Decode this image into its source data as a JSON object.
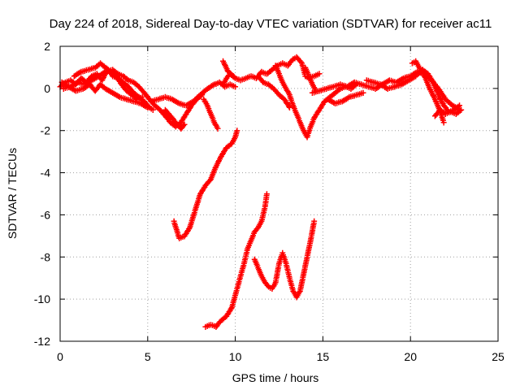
{
  "chart_data": {
    "type": "scatter",
    "title": "Day 224 of 2018, Sidereal Day-to-day VTEC variation (SDTVAR) for receiver ac11",
    "xlabel": "GPS time / hours",
    "ylabel": "SDTVAR / TECUs",
    "xlim": [
      0,
      25
    ],
    "ylim": [
      -12,
      2
    ],
    "xticks": [
      0,
      5,
      10,
      15,
      20,
      25
    ],
    "yticks": [
      -12,
      -10,
      -8,
      -6,
      -4,
      -2,
      0,
      2
    ],
    "grid": true,
    "marker": "+",
    "series": [
      {
        "name": "SDTVAR",
        "color": "#ff0000",
        "tracks": [
          [
            [
              0.0,
              0.1
            ],
            [
              0.3,
              0.3
            ],
            [
              0.6,
              0.4
            ],
            [
              0.9,
              0.2
            ],
            [
              1.2,
              0.5
            ],
            [
              1.5,
              0.3
            ],
            [
              1.8,
              0.6
            ],
            [
              2.1,
              0.7
            ],
            [
              2.4,
              0.4
            ],
            [
              2.7,
              0.9
            ],
            [
              3.0,
              0.6
            ],
            [
              3.3,
              0.5
            ],
            [
              3.6,
              0.3
            ],
            [
              3.9,
              0.1
            ],
            [
              4.2,
              -0.2
            ],
            [
              4.5,
              -0.4
            ],
            [
              4.8,
              -0.6
            ],
            [
              5.1,
              -0.9
            ],
            [
              5.3,
              -1.0
            ]
          ],
          [
            [
              0.1,
              0.3
            ],
            [
              0.5,
              0.1
            ],
            [
              0.9,
              -0.1
            ],
            [
              1.3,
              0.0
            ],
            [
              1.7,
              0.2
            ],
            [
              2.0,
              -0.1
            ],
            [
              2.3,
              0.2
            ],
            [
              2.6,
              0.0
            ],
            [
              3.0,
              -0.2
            ],
            [
              3.4,
              -0.4
            ],
            [
              3.8,
              -0.5
            ],
            [
              4.2,
              -0.6
            ],
            [
              4.6,
              -0.7
            ],
            [
              5.0,
              -0.9
            ]
          ],
          [
            [
              0.8,
              0.6
            ],
            [
              1.2,
              0.8
            ],
            [
              1.6,
              0.9
            ],
            [
              2.0,
              1.0
            ],
            [
              2.3,
              1.2
            ],
            [
              2.6,
              1.0
            ],
            [
              2.9,
              0.8
            ],
            [
              3.2,
              0.6
            ],
            [
              3.5,
              0.2
            ],
            [
              3.8,
              -0.1
            ],
            [
              4.1,
              -0.3
            ],
            [
              4.4,
              -0.5
            ],
            [
              4.7,
              -0.4
            ]
          ],
          [
            [
              0.2,
              0.0
            ],
            [
              0.6,
              0.1
            ],
            [
              1.0,
              0.3
            ],
            [
              1.4,
              0.2
            ],
            [
              1.8,
              0.4
            ],
            [
              2.2,
              0.6
            ],
            [
              2.6,
              0.8
            ],
            [
              3.0,
              0.9
            ],
            [
              3.3,
              0.7
            ],
            [
              3.6,
              0.6
            ],
            [
              3.9,
              0.4
            ],
            [
              4.2,
              0.3
            ],
            [
              4.5,
              0.1
            ],
            [
              4.8,
              -0.2
            ],
            [
              5.1,
              -0.5
            ],
            [
              5.4,
              -0.8
            ],
            [
              5.7,
              -1.0
            ],
            [
              6.0,
              -1.3
            ],
            [
              6.3,
              -1.6
            ],
            [
              6.6,
              -1.8
            ],
            [
              6.9,
              -1.6
            ],
            [
              7.2,
              -1.2
            ],
            [
              7.5,
              -0.8
            ],
            [
              7.8,
              -0.5
            ],
            [
              8.1,
              -0.3
            ]
          ],
          [
            [
              5.2,
              -0.6
            ],
            [
              5.6,
              -0.5
            ],
            [
              6.0,
              -0.4
            ],
            [
              6.4,
              -0.5
            ],
            [
              6.8,
              -0.7
            ],
            [
              7.2,
              -0.8
            ],
            [
              7.6,
              -0.6
            ],
            [
              8.0,
              -0.3
            ],
            [
              8.4,
              0.0
            ],
            [
              8.8,
              0.2
            ],
            [
              9.1,
              0.3
            ],
            [
              9.4,
              0.1
            ],
            [
              9.7,
              0.2
            ],
            [
              10.0,
              0.1
            ]
          ],
          [
            [
              6.0,
              -1.0
            ],
            [
              6.3,
              -1.3
            ],
            [
              6.6,
              -1.6
            ],
            [
              6.9,
              -1.9
            ],
            [
              7.1,
              -1.7
            ]
          ],
          [
            [
              8.2,
              -0.5
            ],
            [
              8.4,
              -0.8
            ],
            [
              8.6,
              -1.2
            ],
            [
              8.8,
              -1.6
            ],
            [
              9.0,
              -1.9
            ]
          ],
          [
            [
              6.5,
              -6.3
            ],
            [
              6.8,
              -7.1
            ],
            [
              7.1,
              -7.0
            ],
            [
              7.4,
              -6.6
            ],
            [
              7.7,
              -5.8
            ],
            [
              8.0,
              -5.0
            ],
            [
              8.3,
              -4.6
            ],
            [
              8.6,
              -4.3
            ],
            [
              8.9,
              -3.7
            ],
            [
              9.2,
              -3.2
            ],
            [
              9.5,
              -2.8
            ],
            [
              9.8,
              -2.6
            ],
            [
              10.0,
              -2.3
            ],
            [
              10.1,
              -2.0
            ]
          ],
          [
            [
              8.3,
              -11.3
            ],
            [
              8.6,
              -11.2
            ],
            [
              8.9,
              -11.3
            ],
            [
              9.2,
              -11.0
            ],
            [
              9.5,
              -10.8
            ],
            [
              9.8,
              -10.4
            ],
            [
              10.1,
              -9.5
            ],
            [
              10.3,
              -8.9
            ],
            [
              10.5,
              -8.3
            ],
            [
              10.7,
              -7.6
            ],
            [
              10.9,
              -7.2
            ],
            [
              11.1,
              -6.8
            ],
            [
              11.3,
              -6.6
            ],
            [
              11.5,
              -6.3
            ],
            [
              11.7,
              -5.6
            ],
            [
              11.8,
              -5.0
            ]
          ],
          [
            [
              11.1,
              -8.1
            ],
            [
              11.3,
              -8.5
            ],
            [
              11.5,
              -8.9
            ],
            [
              11.7,
              -9.2
            ],
            [
              11.9,
              -9.4
            ],
            [
              12.1,
              -9.5
            ],
            [
              12.3,
              -9.2
            ],
            [
              12.5,
              -8.3
            ],
            [
              12.7,
              -7.8
            ],
            [
              12.9,
              -8.3
            ],
            [
              13.1,
              -9.0
            ],
            [
              13.3,
              -9.6
            ],
            [
              13.5,
              -9.9
            ],
            [
              13.7,
              -9.6
            ],
            [
              13.9,
              -8.8
            ],
            [
              14.1,
              -8.0
            ],
            [
              14.3,
              -7.2
            ],
            [
              14.5,
              -6.3
            ]
          ],
          [
            [
              9.3,
              0.2
            ],
            [
              9.5,
              0.5
            ],
            [
              9.7,
              0.7
            ],
            [
              10.0,
              0.5
            ],
            [
              10.3,
              0.4
            ],
            [
              10.6,
              0.5
            ],
            [
              10.9,
              0.6
            ],
            [
              11.2,
              0.5
            ],
            [
              11.5,
              0.8
            ],
            [
              11.8,
              0.7
            ],
            [
              12.1,
              0.9
            ],
            [
              12.4,
              1.1
            ],
            [
              12.7,
              1.2
            ],
            [
              13.0,
              1.1
            ],
            [
              13.3,
              1.4
            ],
            [
              13.5,
              1.5
            ],
            [
              13.8,
              1.2
            ],
            [
              14.0,
              0.6
            ],
            [
              14.2,
              0.5
            ],
            [
              14.5,
              0.6
            ],
            [
              14.8,
              0.7
            ]
          ],
          [
            [
              9.3,
              1.3
            ],
            [
              9.6,
              0.8
            ],
            [
              9.9,
              0.6
            ]
          ],
          [
            [
              11.3,
              0.6
            ],
            [
              11.6,
              0.3
            ],
            [
              11.9,
              0.2
            ],
            [
              12.2,
              0.0
            ],
            [
              12.5,
              -0.3
            ],
            [
              12.8,
              -0.5
            ],
            [
              13.1,
              -0.9
            ]
          ],
          [
            [
              12.3,
              1.1
            ],
            [
              12.5,
              0.7
            ],
            [
              12.7,
              0.3
            ],
            [
              12.9,
              0.0
            ],
            [
              13.1,
              -0.3
            ],
            [
              13.3,
              -0.8
            ],
            [
              13.5,
              -1.2
            ],
            [
              13.7,
              -1.6
            ],
            [
              13.9,
              -2.0
            ],
            [
              14.1,
              -2.3
            ],
            [
              14.3,
              -1.8
            ],
            [
              14.5,
              -1.4
            ],
            [
              14.8,
              -1.0
            ],
            [
              15.1,
              -0.6
            ],
            [
              15.4,
              -0.4
            ],
            [
              15.7,
              -0.2
            ],
            [
              16.0,
              0.0
            ],
            [
              16.3,
              0.1
            ],
            [
              16.6,
              0.0
            ],
            [
              16.9,
              0.2
            ]
          ],
          [
            [
              14.0,
              1.0
            ],
            [
              14.2,
              0.6
            ],
            [
              14.4,
              0.2
            ],
            [
              14.6,
              -0.1
            ]
          ],
          [
            [
              14.4,
              -0.2
            ],
            [
              14.8,
              -0.1
            ],
            [
              15.2,
              0.0
            ],
            [
              15.6,
              0.1
            ],
            [
              16.0,
              0.2
            ],
            [
              16.4,
              0.1
            ],
            [
              16.8,
              0.3
            ],
            [
              17.2,
              0.2
            ],
            [
              17.6,
              0.1
            ],
            [
              18.0,
              0.0
            ],
            [
              18.4,
              0.2
            ],
            [
              18.8,
              0.4
            ],
            [
              19.2,
              0.3
            ],
            [
              19.6,
              0.5
            ],
            [
              20.0,
              0.6
            ],
            [
              20.4,
              0.8
            ],
            [
              20.8,
              0.7
            ],
            [
              21.2,
              0.4
            ],
            [
              21.6,
              0.0
            ],
            [
              22.0,
              -0.5
            ],
            [
              22.4,
              -0.8
            ],
            [
              22.8,
              -1.0
            ]
          ],
          [
            [
              15.3,
              -0.5
            ],
            [
              15.7,
              -0.7
            ],
            [
              16.1,
              -0.6
            ],
            [
              16.5,
              -0.4
            ],
            [
              16.9,
              -0.3
            ],
            [
              17.3,
              -0.2
            ]
          ],
          [
            [
              17.5,
              0.4
            ],
            [
              17.9,
              0.3
            ],
            [
              18.3,
              0.2
            ],
            [
              18.7,
              0.0
            ],
            [
              19.1,
              0.1
            ],
            [
              19.5,
              0.2
            ],
            [
              19.9,
              0.4
            ],
            [
              20.3,
              0.6
            ],
            [
              20.7,
              0.9
            ],
            [
              21.0,
              0.7
            ],
            [
              21.3,
              0.3
            ],
            [
              21.6,
              -0.3
            ],
            [
              21.9,
              -0.8
            ],
            [
              22.2,
              -1.1
            ],
            [
              22.5,
              -1.0
            ],
            [
              22.8,
              -0.8
            ]
          ],
          [
            [
              20.1,
              1.2
            ],
            [
              20.3,
              1.3
            ],
            [
              20.5,
              1.0
            ],
            [
              20.8,
              0.6
            ],
            [
              21.1,
              0.0
            ],
            [
              21.4,
              -0.5
            ],
            [
              21.7,
              -1.1
            ],
            [
              21.9,
              -1.6
            ]
          ],
          [
            [
              21.4,
              -1.3
            ],
            [
              21.7,
              -1.0
            ],
            [
              22.0,
              -1.2
            ],
            [
              22.3,
              -1.1
            ],
            [
              22.6,
              -1.2
            ],
            [
              22.9,
              -1.0
            ]
          ]
        ]
      }
    ]
  }
}
